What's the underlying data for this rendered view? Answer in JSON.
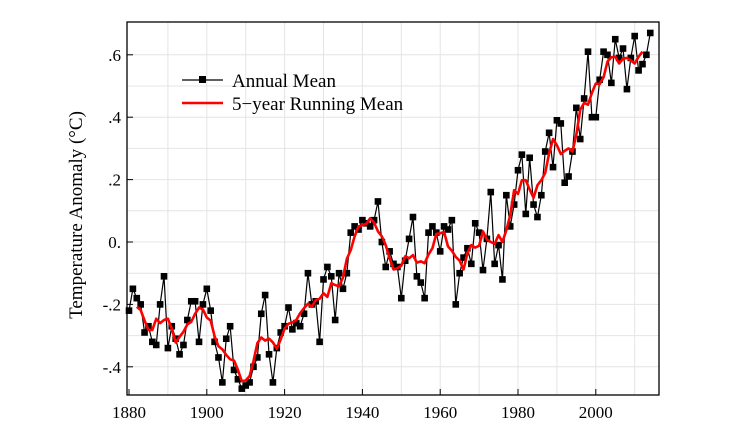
{
  "chart_data": {
    "type": "line",
    "title": "",
    "xlabel": "",
    "ylabel": "Temperature Anomaly (°C)",
    "xlim": [
      1880,
      2015
    ],
    "ylim": [
      -0.49,
      0.7
    ],
    "grid": true,
    "legend_position": "top-left",
    "x_ticks": [
      1880,
      1900,
      1920,
      1940,
      1960,
      1980,
      2000
    ],
    "x_tick_labels": [
      "1880",
      "1900",
      "1920",
      "1940",
      "1960",
      "1980",
      "2000"
    ],
    "y_ticks": [
      0.6,
      0.4,
      0.2,
      0.0,
      -0.2,
      -0.4
    ],
    "y_tick_labels": [
      ".6",
      ".4",
      ".2",
      "0.",
      "-.2",
      "-.4"
    ],
    "running_mean_window": 5,
    "series": [
      {
        "name": "Annual Mean",
        "color": "#000000",
        "marker": "square",
        "x_start": 1880,
        "values": [
          -0.22,
          -0.15,
          -0.18,
          -0.2,
          -0.29,
          -0.27,
          -0.32,
          -0.33,
          -0.2,
          -0.11,
          -0.34,
          -0.27,
          -0.31,
          -0.36,
          -0.33,
          -0.25,
          -0.19,
          -0.19,
          -0.32,
          -0.2,
          -0.15,
          -0.22,
          -0.32,
          -0.37,
          -0.45,
          -0.31,
          -0.27,
          -0.41,
          -0.44,
          -0.47,
          -0.46,
          -0.45,
          -0.4,
          -0.37,
          -0.23,
          -0.17,
          -0.36,
          -0.45,
          -0.34,
          -0.29,
          -0.27,
          -0.21,
          -0.28,
          -0.26,
          -0.27,
          -0.23,
          -0.1,
          -0.2,
          -0.19,
          -0.32,
          -0.12,
          -0.08,
          -0.11,
          -0.25,
          -0.1,
          -0.15,
          -0.1,
          0.03,
          0.05,
          0.04,
          0.07,
          0.06,
          0.05,
          0.07,
          0.13,
          0.0,
          -0.08,
          -0.03,
          -0.07,
          -0.08,
          -0.18,
          -0.06,
          0.01,
          0.08,
          -0.11,
          -0.13,
          -0.18,
          0.03,
          0.05,
          0.03,
          -0.03,
          0.05,
          0.04,
          0.07,
          -0.2,
          -0.1,
          -0.05,
          -0.02,
          -0.07,
          0.06,
          0.03,
          -0.09,
          0.01,
          0.16,
          -0.07,
          -0.01,
          -0.12,
          0.15,
          0.05,
          0.12,
          0.23,
          0.28,
          0.09,
          0.27,
          0.12,
          0.08,
          0.15,
          0.29,
          0.35,
          0.24,
          0.39,
          0.38,
          0.19,
          0.21,
          0.29,
          0.43,
          0.33,
          0.46,
          0.61,
          0.4,
          0.4,
          0.52,
          0.61,
          0.6,
          0.51,
          0.65,
          0.59,
          0.62,
          0.49,
          0.59,
          0.66,
          0.55,
          0.57,
          0.6,
          0.67
        ]
      },
      {
        "name": "5−year Running Mean",
        "color": "#ff0000",
        "derived_from": "Annual Mean"
      }
    ]
  }
}
